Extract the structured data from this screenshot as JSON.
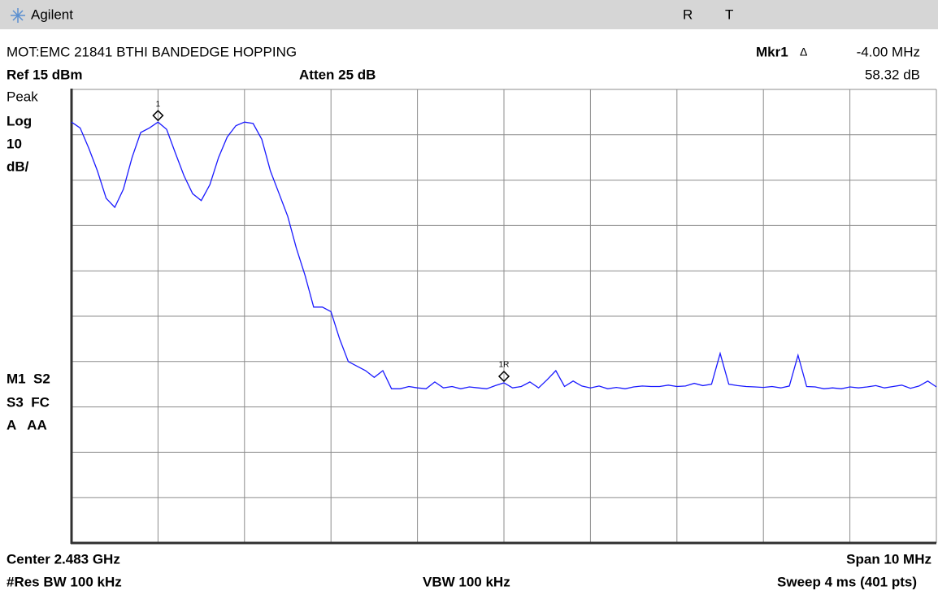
{
  "header": {
    "brand": "Agilent",
    "status": [
      "R",
      "T"
    ]
  },
  "chart_data": {
    "type": "line",
    "title": "MOT:EMC 21841 BTHI BANDEDGE HOPPING",
    "marker_readout": {
      "name": "Mkr1",
      "delta": "Δ",
      "value": "-4.00 MHz",
      "level": "58.32 dB"
    },
    "ref": "Ref 15 dBm",
    "atten": "Atten 25 dB",
    "left_labels": [
      "Peak",
      "Log",
      "10",
      "dB/"
    ],
    "status_labels": [
      "M1  S2",
      "S3  FC",
      "A   AA"
    ],
    "footer": {
      "center": "Center 2.483 GHz",
      "span": "Span 10 MHz",
      "rbw": "#Res BW 100 kHz",
      "vbw": "VBW 100 kHz",
      "sweep": "Sweep 4 ms (401 pts)"
    },
    "ylim": [
      -85,
      15
    ],
    "yticks": [
      -85,
      -75,
      -65,
      -55,
      -45,
      -35,
      -25,
      -15,
      -5,
      5,
      15
    ],
    "grid": true,
    "color": "#1a1aff",
    "values": [
      7.8,
      6.5,
      2,
      -3,
      -9,
      -11,
      -7,
      0,
      5.5,
      6.5,
      7.8,
      6.2,
      1,
      -4,
      -8,
      -9.5,
      -6,
      0,
      4.5,
      7,
      7.8,
      7.5,
      4,
      -3,
      -8,
      -13,
      -20,
      -26,
      -33,
      -33,
      -34,
      -40,
      -45,
      -46,
      -47,
      -48.5,
      -47,
      -51,
      -51,
      -50.5,
      -50.8,
      -51,
      -49.5,
      -50.8,
      -50.5,
      -51,
      -50.6,
      -50.8,
      -51,
      -50.3,
      -49.7,
      -50.8,
      -50.5,
      -49.5,
      -50.8,
      -49,
      -47,
      -50.5,
      -49.3,
      -50.4,
      -50.8,
      -50.4,
      -51,
      -50.7,
      -51,
      -50.6,
      -50.4,
      -50.5,
      -50.5,
      -50.2,
      -50.5,
      -50.4,
      -49.8,
      -50.3,
      -50,
      -43.2,
      -50,
      -50.3,
      -50.5,
      -50.6,
      -50.7,
      -50.5,
      -50.8,
      -50.4,
      -43.6,
      -50.5,
      -50.6,
      -51,
      -50.8,
      -51,
      -50.6,
      -50.8,
      -50.6,
      -50.3,
      -50.8,
      -50.5,
      -50.2,
      -50.9,
      -50.4,
      -49.3,
      -50.6
    ],
    "markers": [
      {
        "label": "1",
        "point": 10
      },
      {
        "label": "1R",
        "point": 50
      }
    ]
  }
}
